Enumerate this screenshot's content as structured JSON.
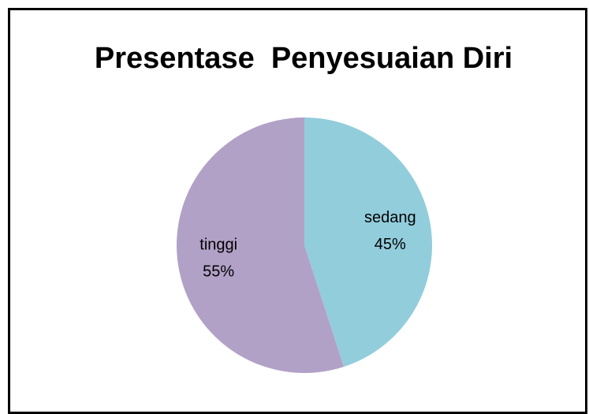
{
  "chart_data": {
    "type": "pie",
    "title": "Presentase  Penyesuaian Diri",
    "categories": [
      "sedang",
      "tinggi"
    ],
    "values": [
      45,
      55
    ],
    "value_labels": [
      "45%",
      "55%"
    ],
    "colors": [
      "#92cddc",
      "#b2a1c7"
    ]
  }
}
